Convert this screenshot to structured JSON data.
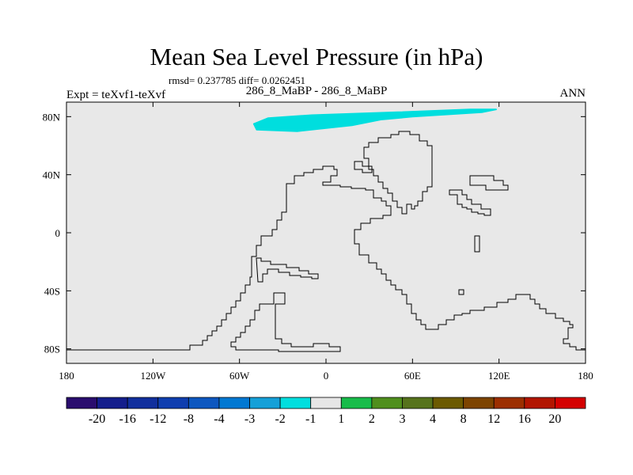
{
  "title": "Mean Sea Level Pressure (in hPa)",
  "stats": "rmsd= 0.237785 diff= 0.0262451",
  "case_label": "286_8_MaBP - 286_8_MaBP",
  "expt_label": "Expt = teXvf1-teXvf",
  "season": "ANN",
  "colors": {
    "background_field": "#e8e8e8",
    "anomaly_fill": "#00dede",
    "coastline": "#000000"
  },
  "chart_data": {
    "type": "heatmap",
    "projection": "cylindrical-equidistant",
    "xlim": [
      -180,
      180
    ],
    "ylim": [
      -90,
      90
    ],
    "x_ticks": [
      -180,
      -120,
      -60,
      0,
      60,
      120,
      180
    ],
    "x_tick_labels": [
      "180",
      "120W",
      "60W",
      "0",
      "60E",
      "120E",
      "180"
    ],
    "y_ticks": [
      80,
      40,
      0,
      -40,
      -80
    ],
    "y_tick_labels": [
      "80N",
      "40N",
      "0",
      "40S",
      "80S"
    ],
    "field_default_bin": "-1 to 1",
    "anomaly_regions": [
      {
        "bin": "-2 to -1",
        "polygon_lonlat": [
          [
            -50,
            75
          ],
          [
            -40,
            79
          ],
          [
            -10,
            81
          ],
          [
            50,
            83
          ],
          [
            100,
            85
          ],
          [
            118,
            85
          ],
          [
            108,
            83
          ],
          [
            60,
            80
          ],
          [
            38,
            78
          ],
          [
            18,
            74
          ],
          [
            -20,
            70
          ],
          [
            -48,
            71
          ]
        ]
      }
    ],
    "colorbar": {
      "labels": [
        "-20",
        "-16",
        "-12",
        "-8",
        "-4",
        "-3",
        "-2",
        "-1",
        "1",
        "2",
        "3",
        "4",
        "8",
        "12",
        "16",
        "20"
      ],
      "colors": [
        "#2a0d6e",
        "#141e8c",
        "#112f9d",
        "#0f3eaf",
        "#0d57c0",
        "#0078d2",
        "#15a0d8",
        "#00dede",
        "#e6e6e6",
        "#18bc4a",
        "#4f8f1d",
        "#56731c",
        "#6c5a00",
        "#7d4400",
        "#9c2f00",
        "#b21500",
        "#d40000"
      ]
    }
  }
}
